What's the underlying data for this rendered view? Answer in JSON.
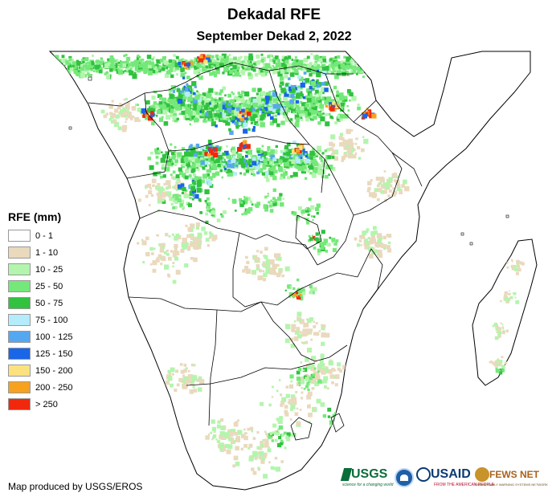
{
  "title": "Dekadal RFE",
  "subtitle": "September Dekad 2, 2022",
  "legend": {
    "title": "RFE (mm)",
    "classes": [
      {
        "label": "0 - 1",
        "color": "#ffffff"
      },
      {
        "label": "1 - 10",
        "color": "#ead9bd"
      },
      {
        "label": "10 - 25",
        "color": "#b3f5ad"
      },
      {
        "label": "25 - 50",
        "color": "#75e87a"
      },
      {
        "label": "50 - 75",
        "color": "#31c23f"
      },
      {
        "label": "75 - 100",
        "color": "#b5ecfb"
      },
      {
        "label": "100 - 125",
        "color": "#55a8f0"
      },
      {
        "label": "125 - 150",
        "color": "#1a66e8"
      },
      {
        "label": "150 - 200",
        "color": "#fbe27f"
      },
      {
        "label": "200 - 250",
        "color": "#f7a21f"
      },
      {
        "label": "> 250",
        "color": "#f2280c"
      }
    ]
  },
  "credit": "Map produced by USGS/EROS",
  "logos": {
    "usgs": {
      "name": "USGS",
      "tagline": "science for a changing world"
    },
    "noaa": {
      "name": "NOAA"
    },
    "usaid": {
      "name": "USAID",
      "tagline": "FROM THE AMERICAN PEOPLE"
    },
    "fews": {
      "name": "FEWS NET",
      "tagline": "FAMINE EARLY WARNING SYSTEMS NETWORK"
    }
  }
}
